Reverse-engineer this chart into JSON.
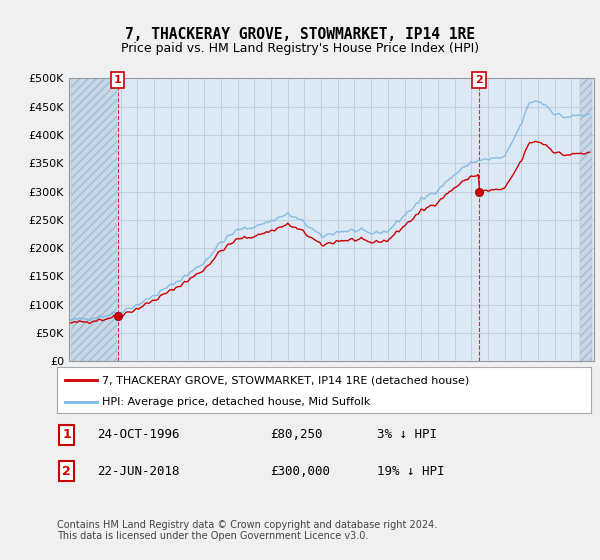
{
  "title": "7, THACKERAY GROVE, STOWMARKET, IP14 1RE",
  "subtitle": "Price paid vs. HM Land Registry's House Price Index (HPI)",
  "legend_line1": "7, THACKERAY GROVE, STOWMARKET, IP14 1RE (detached house)",
  "legend_line2": "HPI: Average price, detached house, Mid Suffolk",
  "annotation1_date": "24-OCT-1996",
  "annotation1_price": "£80,250",
  "annotation1_hpi": "3% ↓ HPI",
  "annotation2_date": "22-JUN-2018",
  "annotation2_price": "£300,000",
  "annotation2_hpi": "19% ↓ HPI",
  "footer": "Contains HM Land Registry data © Crown copyright and database right 2024.\nThis data is licensed under the Open Government Licence v3.0.",
  "hpi_color": "#7db8e0",
  "price_color": "#cc0000",
  "marker_color": "#cc0000",
  "annotation_box_color": "#cc0000",
  "grid_color": "#bbccdd",
  "bg_color": "#f0f0f0",
  "plot_bg_color": "#dce9f5",
  "hatch_bg_color": "#c8d8e8",
  "ylim": [
    0,
    500000
  ],
  "yticks": [
    0,
    50000,
    100000,
    150000,
    200000,
    250000,
    300000,
    350000,
    400000,
    450000,
    500000
  ],
  "purchase1_x": 1996.82,
  "purchase1_y": 80250,
  "purchase2_x": 2018.47,
  "purchase2_y": 300000,
  "xmin": 1994.0,
  "xmax": 2025.25
}
